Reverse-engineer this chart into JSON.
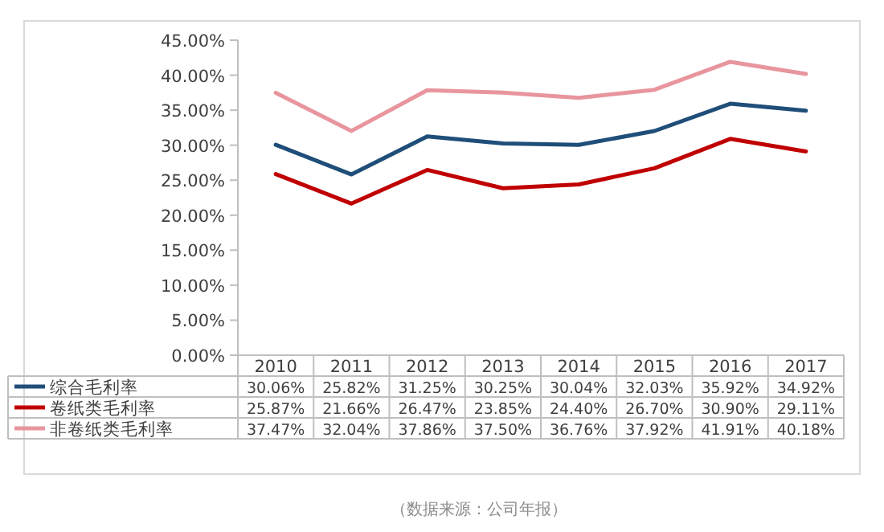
{
  "chart_data": {
    "type": "line",
    "categories": [
      "2010",
      "2011",
      "2012",
      "2013",
      "2014",
      "2015",
      "2016",
      "2017"
    ],
    "series": [
      {
        "name": "综合毛利率",
        "color": "#1f4e79",
        "values": [
          30.06,
          25.82,
          31.25,
          30.25,
          30.04,
          32.03,
          35.92,
          34.92
        ],
        "value_labels": [
          "30.06%",
          "25.82%",
          "31.25%",
          "30.25%",
          "30.04%",
          "32.03%",
          "35.92%",
          "34.92%"
        ]
      },
      {
        "name": "卷纸类毛利率",
        "color": "#c00000",
        "values": [
          25.87,
          21.66,
          26.47,
          23.85,
          24.4,
          26.7,
          30.9,
          29.11
        ],
        "value_labels": [
          "25.87%",
          "21.66%",
          "26.47%",
          "23.85%",
          "24.40%",
          "26.70%",
          "30.90%",
          "29.11%"
        ]
      },
      {
        "name": "非卷纸类毛利率",
        "color": "#e8959e",
        "values": [
          37.47,
          32.04,
          37.86,
          37.5,
          36.76,
          37.92,
          41.91,
          40.18
        ],
        "value_labels": [
          "37.47%",
          "32.04%",
          "37.86%",
          "37.50%",
          "36.76%",
          "37.92%",
          "41.91%",
          "40.18%"
        ]
      }
    ],
    "ylim": [
      0,
      45
    ],
    "yticks": [
      {
        "value": 0,
        "label": "0.00%"
      },
      {
        "value": 5,
        "label": "5.00%"
      },
      {
        "value": 10,
        "label": "10.00%"
      },
      {
        "value": 15,
        "label": "15.00%"
      },
      {
        "value": 20,
        "label": "20.00%"
      },
      {
        "value": 25,
        "label": "25.00%"
      },
      {
        "value": 30,
        "label": "30.00%"
      },
      {
        "value": 35,
        "label": "35.00%"
      },
      {
        "value": 40,
        "label": "40.00%"
      },
      {
        "value": 45,
        "label": "45.00%"
      }
    ],
    "legend": "bottom",
    "marker": "none",
    "line_style": "solid",
    "annotations": [
      "（数据来源：公司年报）"
    ]
  }
}
